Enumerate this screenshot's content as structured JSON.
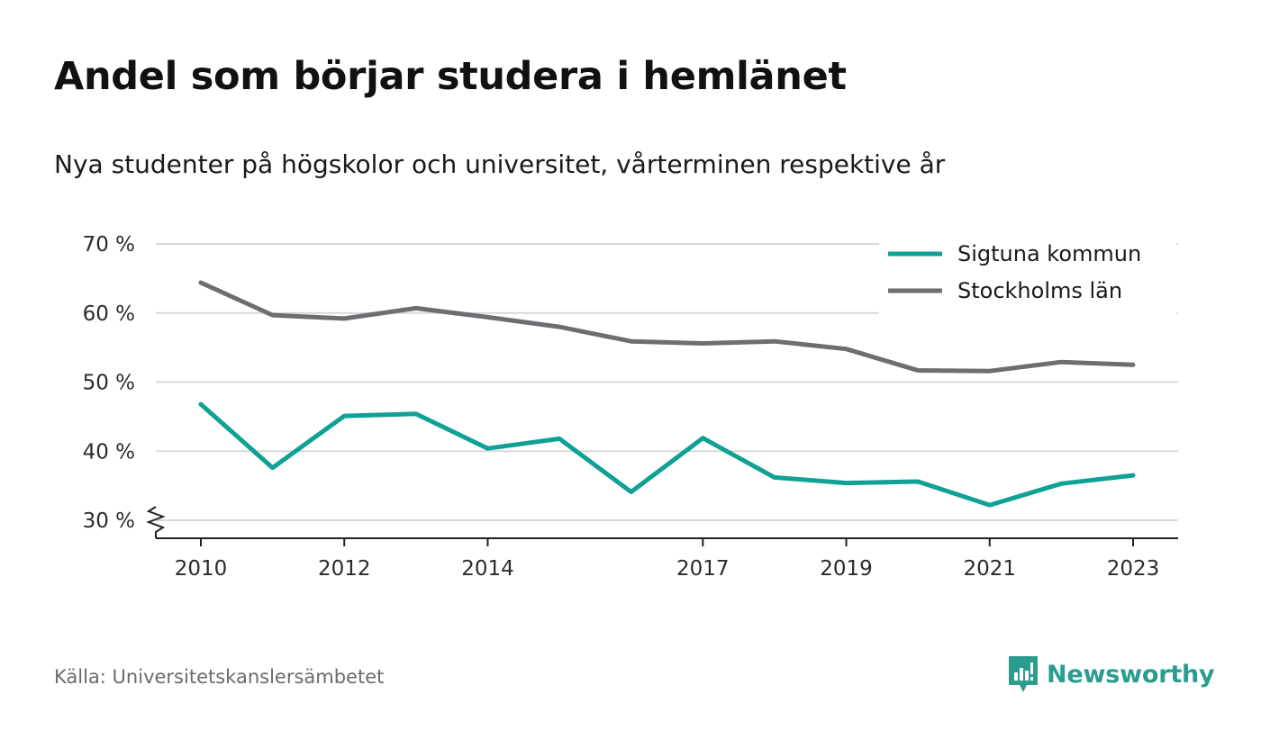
{
  "header": {
    "title": "Andel som börjar studera i hemlänet",
    "subtitle": "Nya studenter på högskolor och universitet, vårterminen respektive år"
  },
  "footer": {
    "source": "Källa: Universitetskanslersämbetet",
    "brand": "Newsworthy",
    "brand_icon": "chart-speech-bubble-icon"
  },
  "colors": {
    "sigtuna": "#0fa195",
    "stockholm": "#6d6d72",
    "grid": "#d9d9d9",
    "brand": "#2a9d8f"
  },
  "chart_data": {
    "type": "line",
    "x": [
      2010,
      2011,
      2012,
      2013,
      2014,
      2015,
      2016,
      2017,
      2018,
      2019,
      2020,
      2021,
      2022,
      2023
    ],
    "x_ticks": [
      2010,
      2012,
      2014,
      2017,
      2019,
      2021,
      2023
    ],
    "x_tick_labels": [
      "2010",
      "2012",
      "2014",
      "2017",
      "2019",
      "2021",
      "2023"
    ],
    "y_ticks": [
      30,
      40,
      50,
      60,
      70
    ],
    "y_tick_labels": [
      "30 %",
      "40 %",
      "50 %",
      "60 %",
      "70 %"
    ],
    "ylim": [
      27,
      70
    ],
    "y_axis_break": true,
    "grid": true,
    "legend_position": "top-right",
    "series": [
      {
        "name": "Sigtuna kommun",
        "color_key": "sigtuna",
        "values": [
          46.8,
          37.6,
          45.1,
          45.4,
          40.4,
          41.8,
          34.1,
          41.9,
          36.2,
          35.4,
          35.6,
          32.2,
          35.3,
          36.5
        ]
      },
      {
        "name": "Stockholms län",
        "color_key": "stockholm",
        "values": [
          64.4,
          59.7,
          59.2,
          60.7,
          59.4,
          58.0,
          55.9,
          55.6,
          55.9,
          54.8,
          51.7,
          51.6,
          52.9,
          52.5
        ]
      }
    ]
  }
}
